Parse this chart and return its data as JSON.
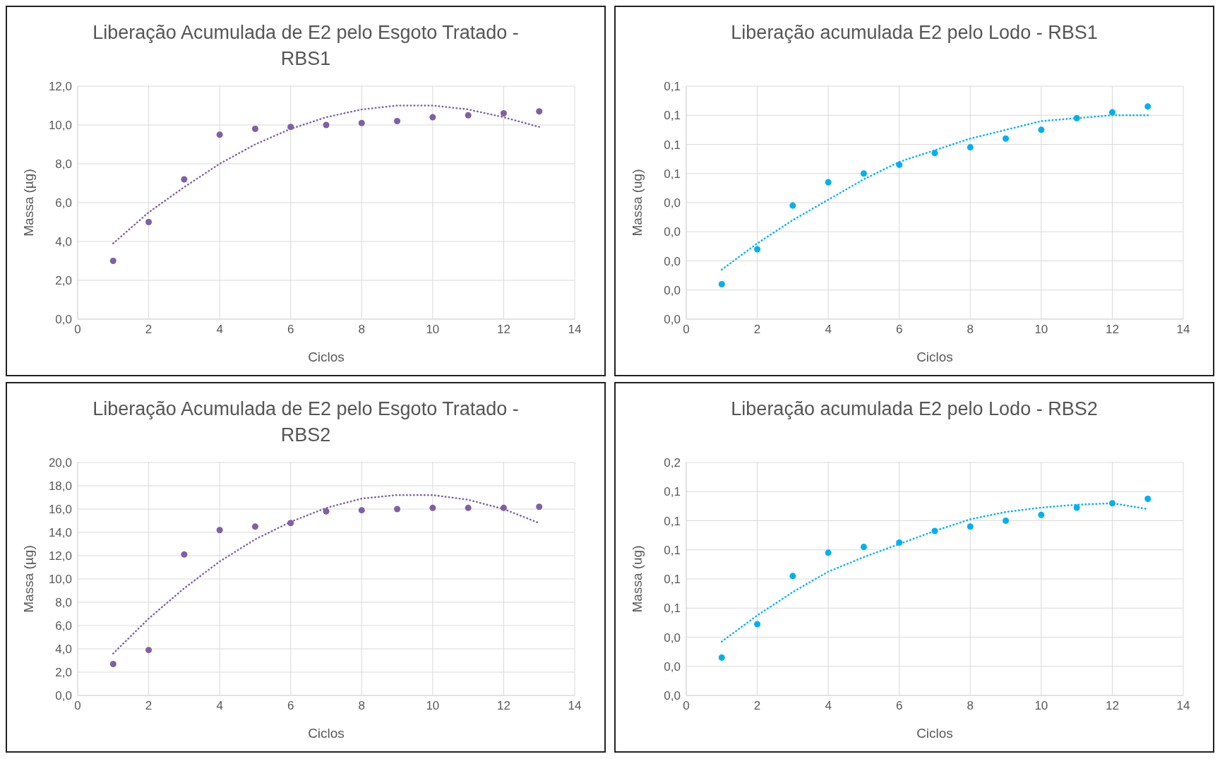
{
  "chart_data": [
    {
      "type": "scatter",
      "title": "Liberação Acumulada de E2 pelo Esgoto Tratado - RBS1",
      "xlabel": "Ciclos",
      "ylabel": "Massa (µg)",
      "x": [
        1,
        2,
        3,
        4,
        5,
        6,
        7,
        8,
        9,
        10,
        11,
        12,
        13
      ],
      "xlim": [
        0,
        14
      ],
      "xticks": [
        0,
        2,
        4,
        6,
        8,
        10,
        12,
        14
      ],
      "ylim": [
        0,
        12
      ],
      "yticks": [
        {
          "value": 0,
          "label": "0,0"
        },
        {
          "value": 2,
          "label": "2,0"
        },
        {
          "value": 4,
          "label": "4,0"
        },
        {
          "value": 6,
          "label": "6,0"
        },
        {
          "value": 8,
          "label": "8,0"
        },
        {
          "value": 10,
          "label": "10,0"
        },
        {
          "value": 12,
          "label": "12,0"
        }
      ],
      "grid": true,
      "legend": false,
      "series": [
        {
          "marker": "circle",
          "color": "#7f5fa5",
          "values": [
            3.0,
            5.0,
            7.2,
            9.5,
            9.8,
            9.9,
            10.0,
            10.1,
            10.2,
            10.4,
            10.5,
            10.6,
            10.7
          ]
        },
        {
          "type": "line",
          "marker": "none",
          "line_style": "dotted",
          "color": "#7f5fa5",
          "values": [
            3.9,
            5.5,
            6.8,
            8.0,
            9.0,
            9.8,
            10.4,
            10.8,
            11.0,
            11.0,
            10.8,
            10.4,
            9.9
          ]
        }
      ]
    },
    {
      "type": "scatter",
      "title": "Liberação acumulada E2 pelo Lodo - RBS1",
      "xlabel": "Ciclos",
      "ylabel": "Massa (ug)",
      "x": [
        1,
        2,
        3,
        4,
        5,
        6,
        7,
        8,
        9,
        10,
        11,
        12,
        13
      ],
      "xlim": [
        0,
        14
      ],
      "xticks": [
        0,
        2,
        4,
        6,
        8,
        10,
        12,
        14
      ],
      "ylim": [
        0,
        0.08
      ],
      "yticks": [
        {
          "value": 0,
          "label": "0,0"
        },
        {
          "value": 0.01,
          "label": "0,0"
        },
        {
          "value": 0.02,
          "label": "0,0"
        },
        {
          "value": 0.03,
          "label": "0,0"
        },
        {
          "value": 0.04,
          "label": "0,0"
        },
        {
          "value": 0.05,
          "label": "0,1"
        },
        {
          "value": 0.06,
          "label": "0,1"
        },
        {
          "value": 0.07,
          "label": "0,1"
        },
        {
          "value": 0.08,
          "label": "0,1"
        }
      ],
      "grid": true,
      "legend": false,
      "series": [
        {
          "marker": "circle",
          "color": "#00b0f0",
          "values": [
            0.012,
            0.024,
            0.039,
            0.047,
            0.05,
            0.053,
            0.057,
            0.059,
            0.062,
            0.065,
            0.069,
            0.071,
            0.073
          ]
        },
        {
          "type": "line",
          "marker": "none",
          "line_style": "dotted",
          "color": "#00b0f0",
          "values": [
            0.017,
            0.026,
            0.034,
            0.041,
            0.048,
            0.054,
            0.058,
            0.062,
            0.065,
            0.068,
            0.069,
            0.07,
            0.07
          ]
        }
      ]
    },
    {
      "type": "scatter",
      "title": "Liberação Acumulada de E2 pelo Esgoto Tratado - RBS2",
      "xlabel": "Ciclos",
      "ylabel": "Massa (µg)",
      "x": [
        1,
        2,
        3,
        4,
        5,
        6,
        7,
        8,
        9,
        10,
        11,
        12,
        13
      ],
      "xlim": [
        0,
        14
      ],
      "xticks": [
        0,
        2,
        4,
        6,
        8,
        10,
        12,
        14
      ],
      "ylim": [
        0,
        20
      ],
      "yticks": [
        {
          "value": 0,
          "label": "0,0"
        },
        {
          "value": 2,
          "label": "2,0"
        },
        {
          "value": 4,
          "label": "4,0"
        },
        {
          "value": 6,
          "label": "6,0"
        },
        {
          "value": 8,
          "label": "8,0"
        },
        {
          "value": 10,
          "label": "10,0"
        },
        {
          "value": 12,
          "label": "12,0"
        },
        {
          "value": 14,
          "label": "14,0"
        },
        {
          "value": 16,
          "label": "16,0"
        },
        {
          "value": 18,
          "label": "18,0"
        },
        {
          "value": 20,
          "label": "20,0"
        }
      ],
      "grid": true,
      "legend": false,
      "series": [
        {
          "marker": "circle",
          "color": "#7f5fa5",
          "values": [
            2.7,
            3.9,
            12.1,
            14.2,
            14.5,
            14.8,
            15.8,
            15.9,
            16.0,
            16.1,
            16.1,
            16.1,
            16.2
          ]
        },
        {
          "type": "line",
          "marker": "none",
          "line_style": "dotted",
          "color": "#7f5fa5",
          "values": [
            3.6,
            6.6,
            9.2,
            11.5,
            13.4,
            14.9,
            16.1,
            16.9,
            17.2,
            17.2,
            16.8,
            16.0,
            14.8
          ]
        }
      ]
    },
    {
      "type": "scatter",
      "title": "Liberação acumulada E2 pelo Lodo - RBS2",
      "xlabel": "Ciclos",
      "ylabel": "Massa (ug)",
      "x": [
        1,
        2,
        3,
        4,
        5,
        6,
        7,
        8,
        9,
        10,
        11,
        12,
        13
      ],
      "xlim": [
        0,
        14
      ],
      "xticks": [
        0,
        2,
        4,
        6,
        8,
        10,
        12,
        14
      ],
      "ylim": [
        0,
        0.16
      ],
      "yticks": [
        {
          "value": 0,
          "label": "0,0"
        },
        {
          "value": 0.02,
          "label": "0,0"
        },
        {
          "value": 0.04,
          "label": "0,0"
        },
        {
          "value": 0.06,
          "label": "0,1"
        },
        {
          "value": 0.08,
          "label": "0,1"
        },
        {
          "value": 0.1,
          "label": "0,1"
        },
        {
          "value": 0.12,
          "label": "0,1"
        },
        {
          "value": 0.14,
          "label": "0,1"
        },
        {
          "value": 0.16,
          "label": "0,2"
        }
      ],
      "grid": true,
      "legend": false,
      "series": [
        {
          "marker": "circle",
          "color": "#00b0f0",
          "values": [
            0.026,
            0.049,
            0.082,
            0.098,
            0.102,
            0.105,
            0.113,
            0.116,
            0.12,
            0.124,
            0.129,
            0.132,
            0.135
          ]
        },
        {
          "type": "line",
          "marker": "none",
          "line_style": "dotted",
          "color": "#00b0f0",
          "values": [
            0.037,
            0.055,
            0.071,
            0.085,
            0.095,
            0.104,
            0.113,
            0.121,
            0.126,
            0.129,
            0.131,
            0.132,
            0.128
          ]
        }
      ]
    }
  ]
}
